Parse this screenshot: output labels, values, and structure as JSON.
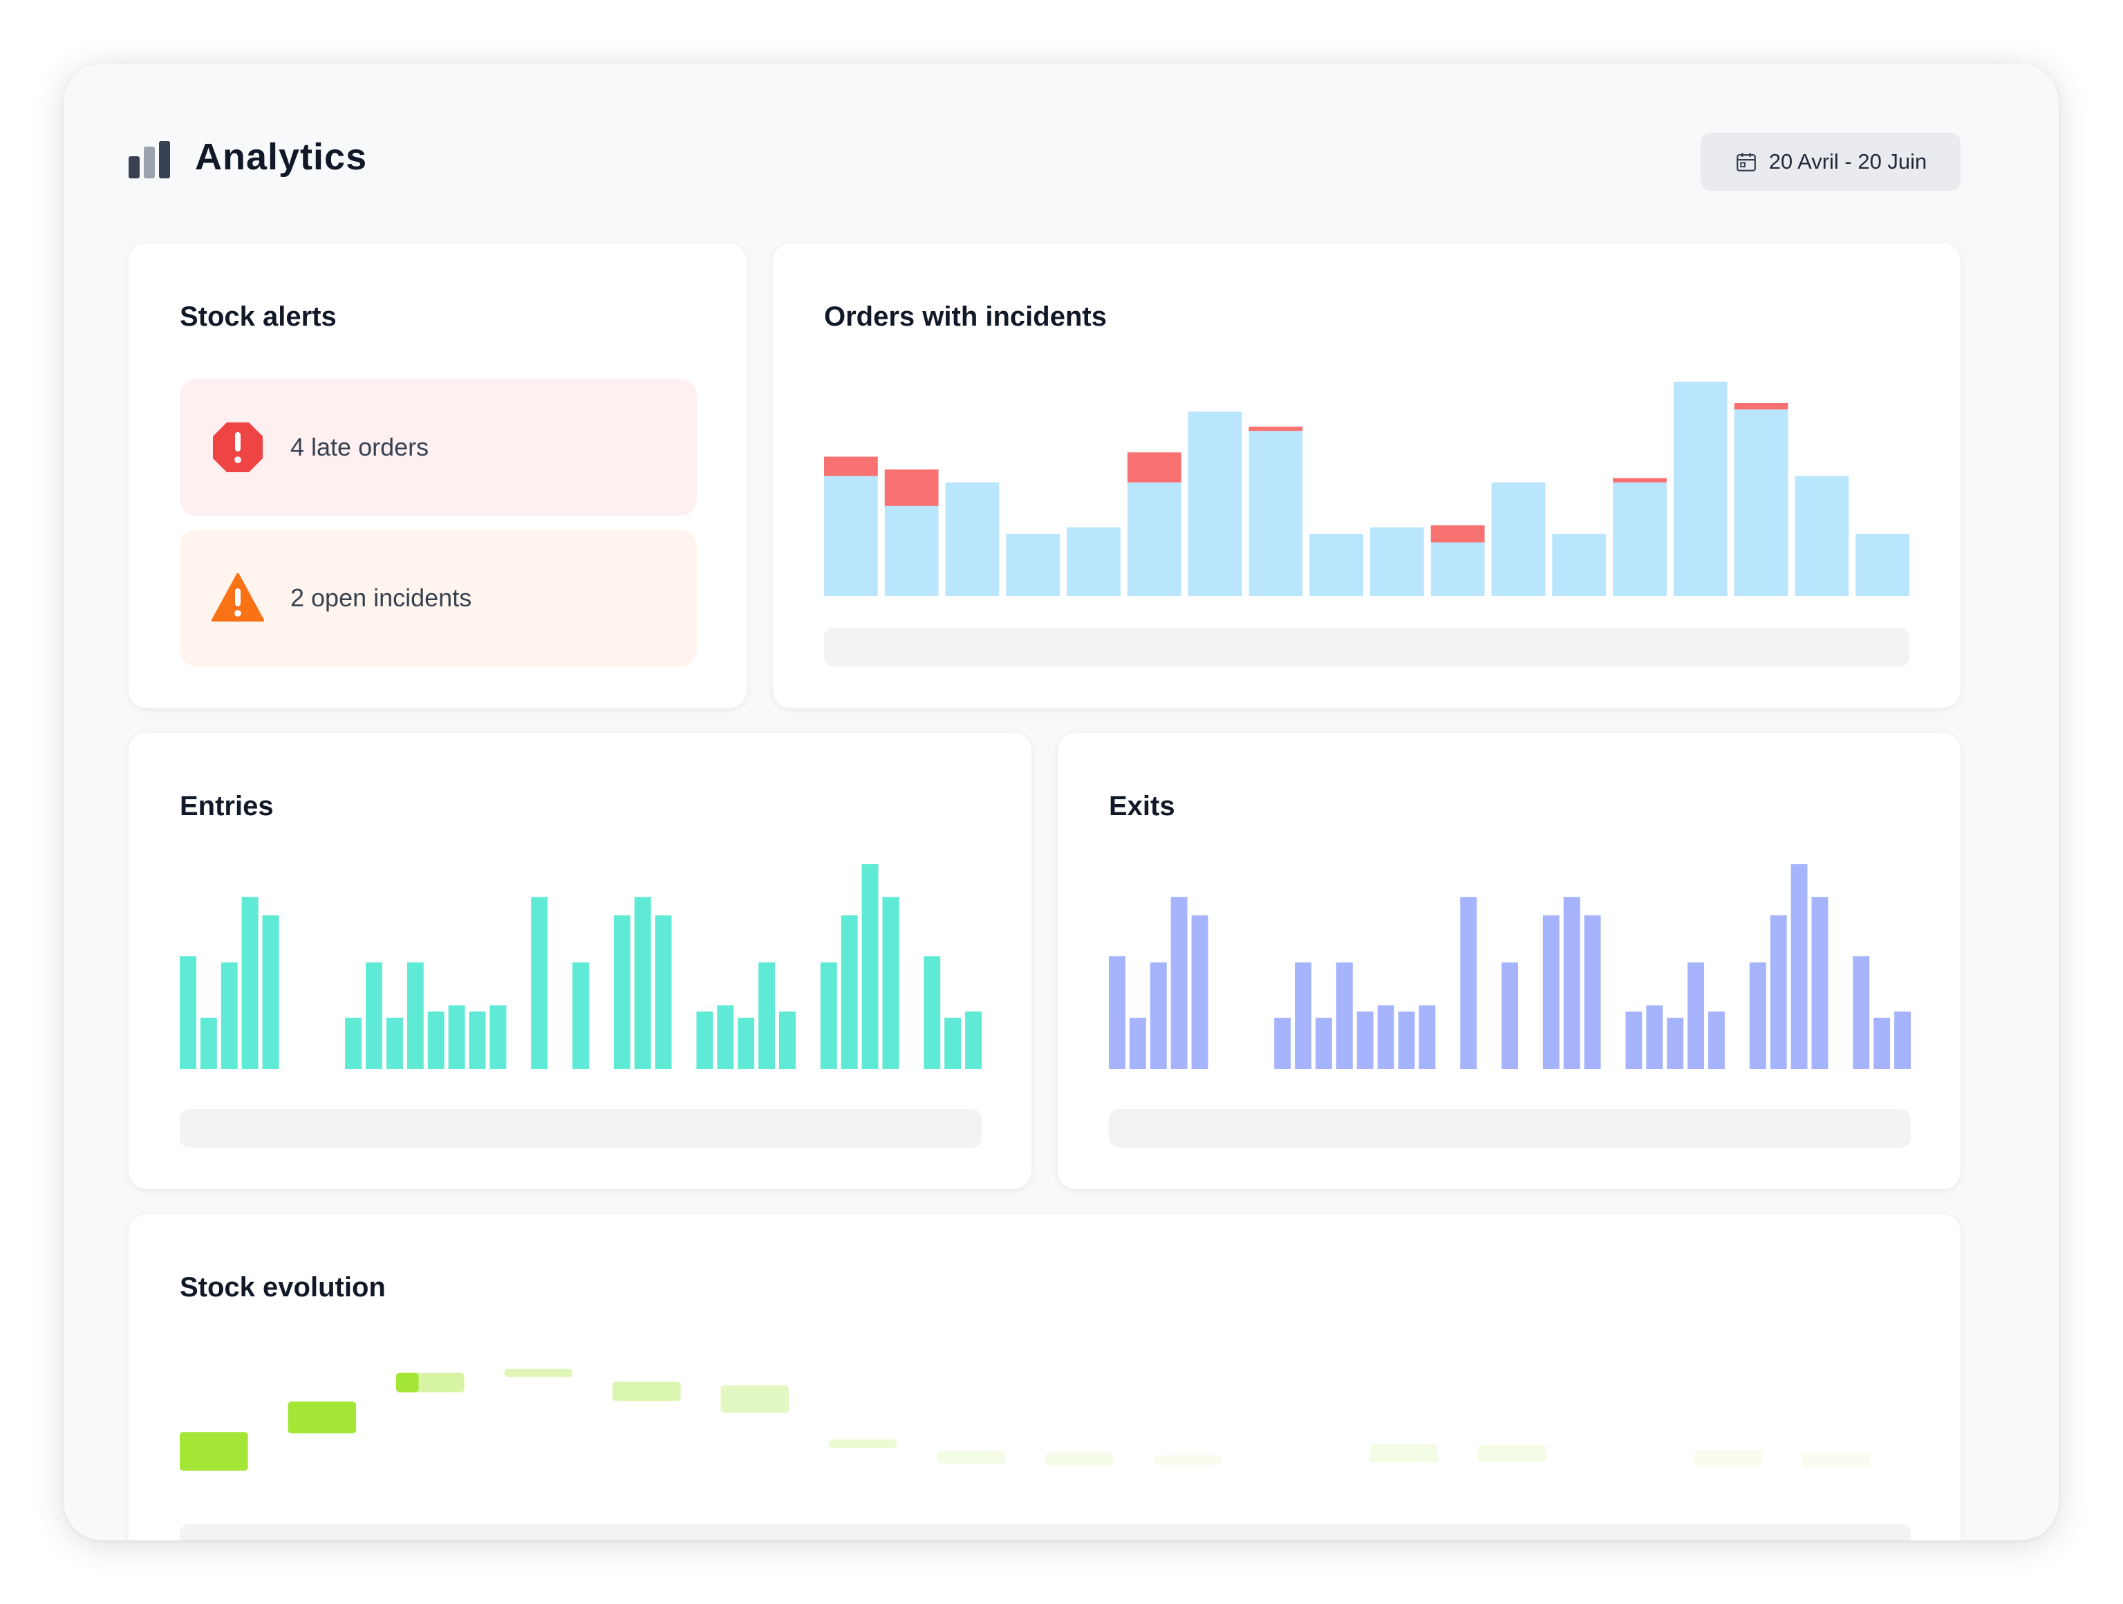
{
  "header": {
    "title": "Analytics",
    "date_range": "20 Avril - 20 Juin",
    "icons": {
      "logo": "bar-chart-icon",
      "date": "calendar-icon"
    }
  },
  "stock_alerts": {
    "title": "Stock alerts",
    "items": [
      {
        "label": "4 late orders",
        "icon": "error-octagon-icon",
        "color": "#ef4444",
        "background": "#fef0f0"
      },
      {
        "label": "2 open incidents",
        "icon": "warning-triangle-icon",
        "color": "#f97316",
        "background": "#fff5ee"
      }
    ]
  },
  "orders_with_incidents": {
    "title": "Orders with incidents",
    "chart_data": {
      "type": "bar",
      "stacked": true,
      "series": [
        {
          "color": "#bae6fd",
          "values": [
            0.56,
            0.42,
            0.53,
            0.29,
            0.32,
            0.53,
            0.86,
            0.77,
            0.29,
            0.32,
            0.25,
            0.53,
            0.29,
            0.53,
            1.0,
            0.87,
            0.56,
            0.29
          ]
        },
        {
          "color": "#f87171",
          "values": [
            0.09,
            0.17,
            0.0,
            0.0,
            0.0,
            0.14,
            0.0,
            0.02,
            0.0,
            0.0,
            0.08,
            0.0,
            0.0,
            0.02,
            0.0,
            0.03,
            0.0,
            0.0
          ]
        }
      ]
    }
  },
  "entries": {
    "title": "Entries",
    "chart_data": {
      "type": "bar",
      "color": "#5eead4",
      "values": [
        0.55,
        0.25,
        0.52,
        0.84,
        0.75,
        0,
        0,
        0,
        0.25,
        0.52,
        0.25,
        0.52,
        0.28,
        0.31,
        0.28,
        0.31,
        0,
        0.84,
        0,
        0.52,
        0,
        0.75,
        0.84,
        0.75,
        0,
        0.28,
        0.31,
        0.25,
        0.52,
        0.28,
        0,
        0.52,
        0.75,
        1.0,
        0.84,
        0,
        0.55,
        0.25,
        0.28
      ]
    }
  },
  "exits": {
    "title": "Exits",
    "chart_data": {
      "type": "bar",
      "color": "#a5b4fc",
      "values": [
        0.55,
        0.25,
        0.52,
        0.84,
        0.75,
        0,
        0,
        0,
        0.25,
        0.52,
        0.25,
        0.52,
        0.28,
        0.31,
        0.28,
        0.31,
        0,
        0.84,
        0,
        0.52,
        0,
        0.75,
        0.84,
        0.75,
        0,
        0.28,
        0.31,
        0.25,
        0.52,
        0.28,
        0,
        0.52,
        0.75,
        1.0,
        0.84,
        0,
        0.55,
        0.25,
        0.28
      ]
    }
  },
  "stock_evolution": {
    "title": "Stock evolution",
    "chart_data": {
      "type": "bar",
      "color": "#a3e635",
      "levels": [
        0.12,
        0.47,
        0.83,
        0.93,
        0.74,
        0.66,
        0.2,
        0.06,
        0.04,
        0.03,
        0,
        0.1,
        0.1,
        0,
        0.05,
        0.03
      ]
    }
  }
}
